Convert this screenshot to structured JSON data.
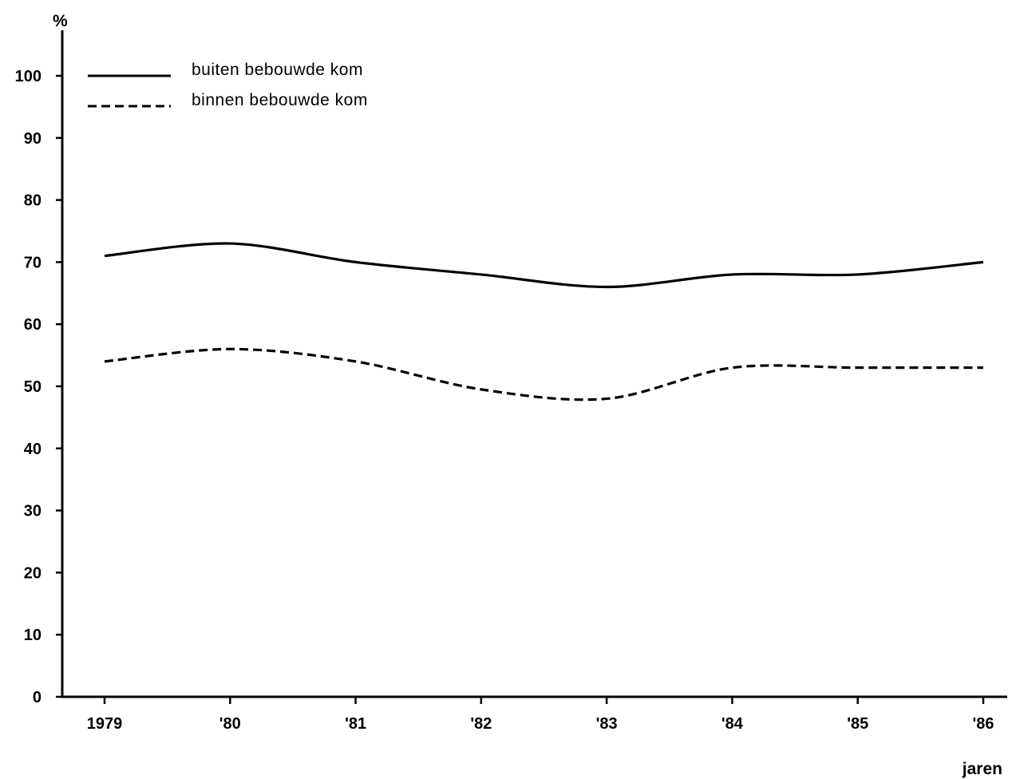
{
  "chart_data": {
    "type": "line",
    "ylabel": "%",
    "xlabel": "jaren",
    "categories": [
      "1979",
      "'80",
      "'81",
      "'82",
      "'83",
      "'84",
      "'85",
      "'86"
    ],
    "yticks": [
      0,
      10,
      20,
      30,
      40,
      50,
      60,
      70,
      80,
      90,
      100
    ],
    "ylim": [
      0,
      100
    ],
    "grid": false,
    "legend_position": "top-left",
    "series": [
      {
        "name": "buiten bebouwde kom",
        "style": "solid",
        "values": [
          71,
          73,
          70,
          68,
          66,
          68,
          68,
          70
        ]
      },
      {
        "name": "binnen bebouwde kom",
        "style": "dashed",
        "values": [
          54,
          56,
          54,
          49.5,
          48,
          53,
          53,
          53
        ]
      }
    ]
  }
}
